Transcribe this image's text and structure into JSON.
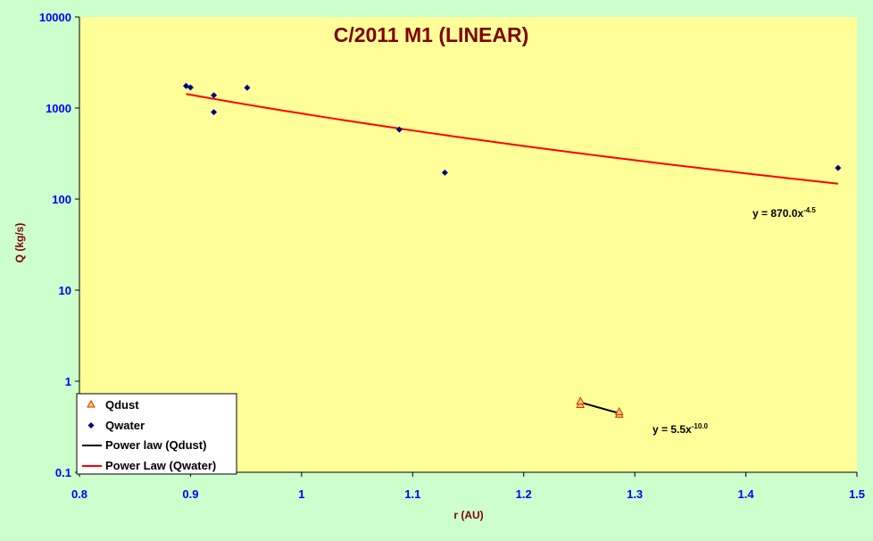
{
  "colors": {
    "background": "#ccffcc",
    "plot_area": "#ffff99",
    "axis_text": "#0000ff",
    "label_text": "#800000",
    "qdust_marker_fill": "#ffcc66",
    "qdust_marker_stroke": "#cc3300",
    "qwater_marker": "#000080",
    "dust_fit": "#000000",
    "water_fit": "#ff0000"
  },
  "chart_data": {
    "type": "scatter",
    "title": "C/2011 M1 (LINEAR)",
    "xlabel": "r (AU)",
    "ylabel": "Q (kg/s)",
    "xlim": [
      0.8,
      1.5
    ],
    "ylim": [
      0.1,
      10000
    ],
    "yscale": "log",
    "x_ticks": [
      "0.8",
      "0.9",
      "1",
      "1.1",
      "1.2",
      "1.3",
      "1.4",
      "1.5"
    ],
    "y_ticks": [
      "0.1",
      "1",
      "10",
      "100",
      "1000",
      "10000"
    ],
    "grid": false,
    "legend_position": "bottom-left",
    "series": [
      {
        "name": "Qdust",
        "marker": "triangle",
        "points": [
          {
            "x": 1.251,
            "y": 0.55
          },
          {
            "x": 1.251,
            "y": 0.6
          },
          {
            "x": 1.286,
            "y": 0.43
          },
          {
            "x": 1.286,
            "y": 0.46
          }
        ]
      },
      {
        "name": "Qwater",
        "marker": "diamond",
        "points": [
          {
            "x": 0.896,
            "y": 1750
          },
          {
            "x": 0.9,
            "y": 1680
          },
          {
            "x": 0.921,
            "y": 1380
          },
          {
            "x": 0.921,
            "y": 900
          },
          {
            "x": 0.951,
            "y": 1670
          },
          {
            "x": 1.088,
            "y": 580
          },
          {
            "x": 1.129,
            "y": 195
          },
          {
            "x": 1.483,
            "y": 220
          }
        ]
      }
    ],
    "fits": [
      {
        "name": "Power law (Qdust)",
        "coefficient": 5.5,
        "exponent": -10.0,
        "x_range": [
          1.251,
          1.286
        ],
        "label_base": "y = 5.5x",
        "label_exp": "-10.0"
      },
      {
        "name": "Power Law (Qwater)",
        "coefficient": 870.0,
        "exponent": -4.5,
        "x_range": [
          0.896,
          1.483
        ],
        "label_base": "y = 870.0x",
        "label_exp": "-4.5"
      }
    ]
  }
}
